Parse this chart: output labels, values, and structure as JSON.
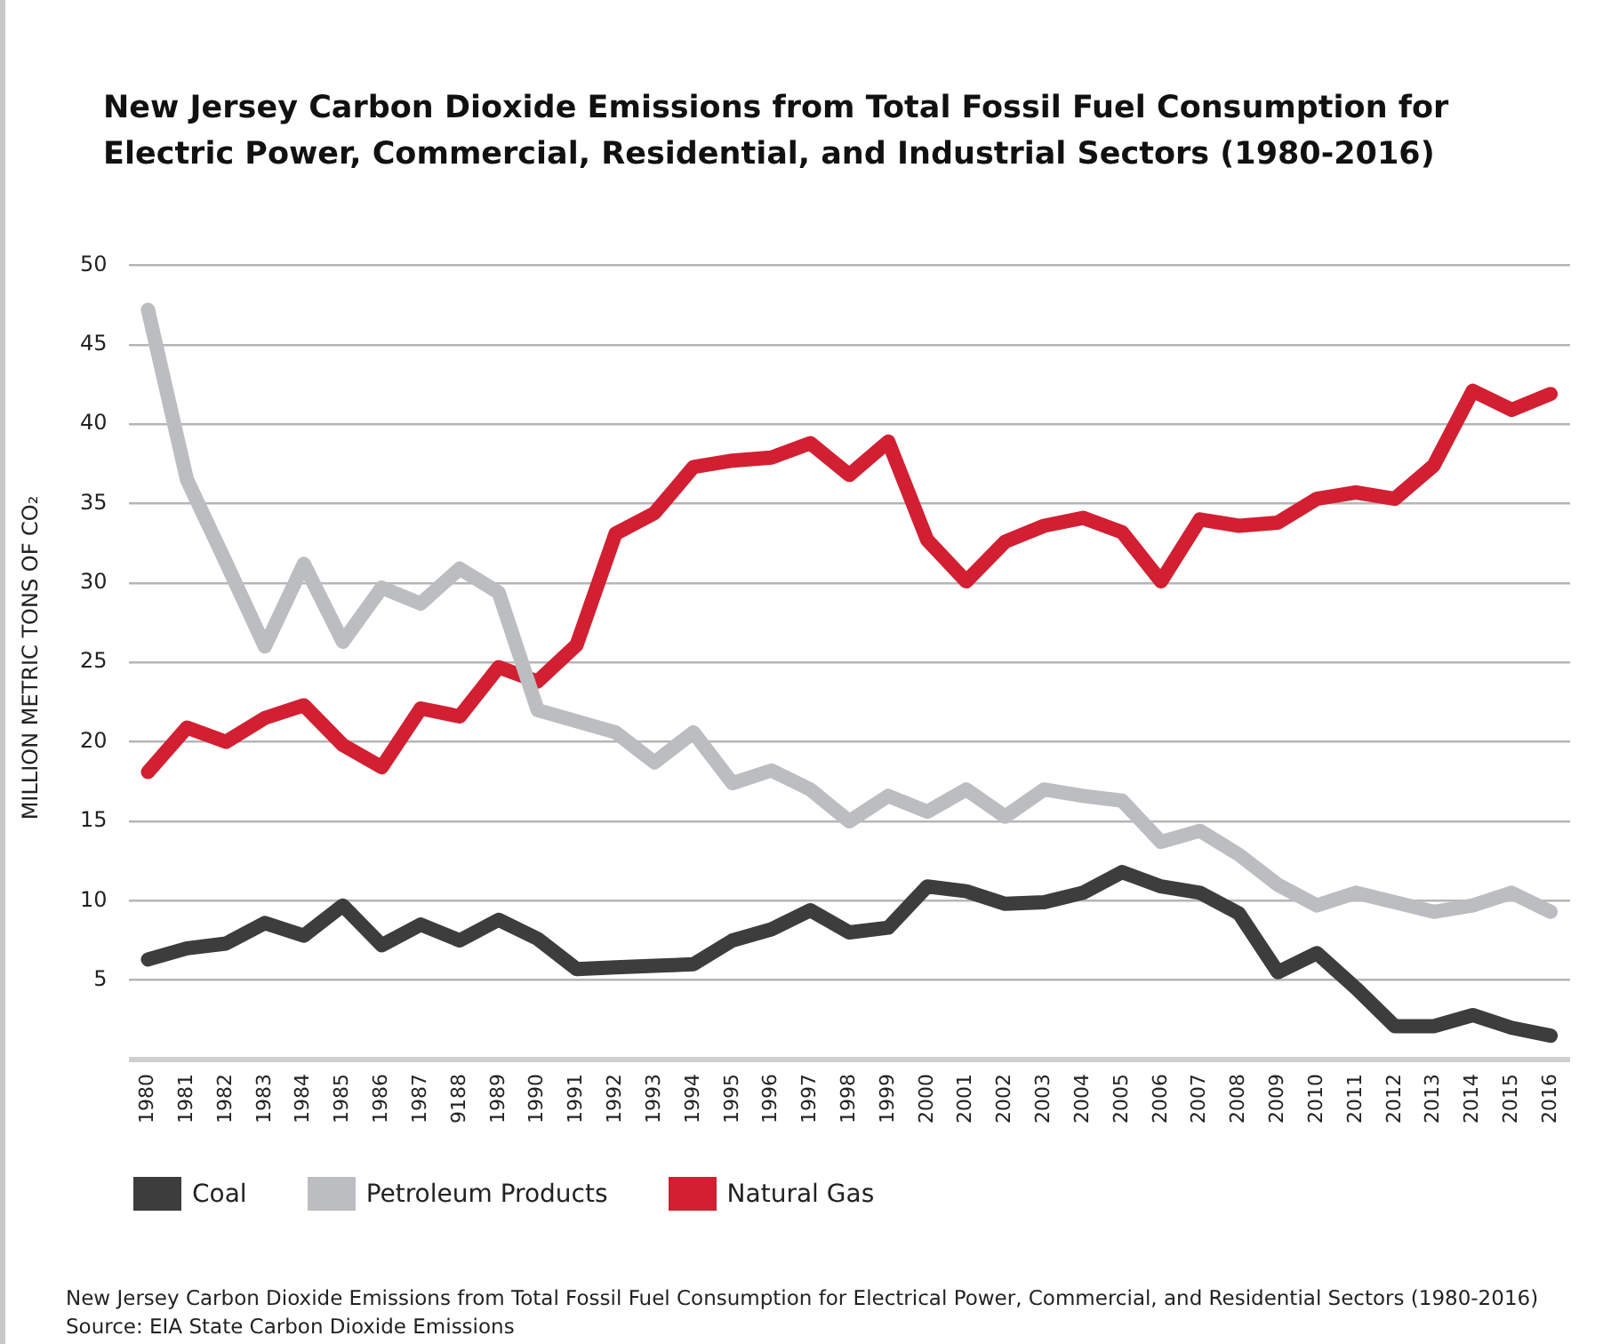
{
  "chart_data": {
    "type": "line",
    "title": "New Jersey Carbon Dioxide Emissions from Total Fossil Fuel Consumption for Electric Power, Commercial, Residential, and Industrial Sectors (1980-2016)",
    "ylabel": "MILLION METRIC TONS OF CO₂",
    "categories": [
      "1980",
      "1981",
      "1982",
      "1983",
      "1984",
      "1985",
      "1986",
      "1987",
      "9188",
      "1989",
      "1990",
      "1991",
      "1992",
      "1993",
      "1994",
      "1995",
      "1996",
      "1997",
      "1998",
      "1999",
      "2000",
      "2001",
      "2002",
      "2003",
      "2004",
      "2005",
      "2006",
      "2007",
      "2008",
      "2009",
      "2010",
      "2011",
      "2012",
      "2013",
      "2014",
      "2015",
      "2016"
    ],
    "series": [
      {
        "name": "Coal",
        "color": "#3d3d3d",
        "values": [
          6.3,
          7.0,
          7.3,
          8.6,
          7.8,
          9.7,
          7.2,
          8.5,
          7.5,
          8.8,
          7.6,
          5.7,
          5.8,
          5.9,
          6.0,
          7.5,
          8.2,
          9.4,
          8.0,
          8.3,
          10.9,
          10.6,
          9.8,
          9.9,
          10.5,
          11.8,
          10.9,
          10.5,
          9.2,
          5.5,
          6.7,
          4.5,
          2.1,
          2.1,
          2.8,
          2.0,
          1.5
        ]
      },
      {
        "name": "Petroleum Products",
        "color": "#bcbdc0",
        "values": [
          47.2,
          36.5,
          31.3,
          26.0,
          31.2,
          26.3,
          29.7,
          28.7,
          30.9,
          29.4,
          22.0,
          21.3,
          20.6,
          18.7,
          20.6,
          17.4,
          18.2,
          17.0,
          15.0,
          16.6,
          15.6,
          17.0,
          15.3,
          17.0,
          16.6,
          16.3,
          13.7,
          14.4,
          12.9,
          11.0,
          9.7,
          10.5,
          9.9,
          9.3,
          9.7,
          10.5,
          9.3
        ]
      },
      {
        "name": "Natural Gas",
        "color": "#d21f32",
        "values": [
          18.1,
          20.9,
          20.0,
          21.5,
          22.3,
          19.8,
          18.4,
          22.1,
          21.6,
          24.7,
          23.8,
          26.1,
          33.1,
          34.4,
          37.3,
          37.7,
          37.9,
          38.8,
          36.8,
          38.9,
          32.7,
          30.1,
          32.6,
          33.6,
          34.1,
          33.2,
          30.1,
          34.0,
          33.6,
          33.8,
          35.3,
          35.7,
          35.3,
          37.4,
          42.1,
          40.9,
          41.9
        ]
      }
    ],
    "ylim": [
      0,
      50
    ],
    "yticks": [
      {
        "value": 0,
        "label": null
      },
      5,
      10,
      15,
      20,
      25,
      30,
      35,
      40,
      45,
      50
    ],
    "grid": "y",
    "legend": "bottom",
    "marker": "none",
    "line_style": "solid",
    "annotations": [
      "New Jersey Carbon Dioxide Emissions from Total Fossil Fuel Consumption for Electrical Power, Commercial, and Residential Sectors (1980-2016)",
      "Source: EIA State Carbon Dioxide Emissions"
    ]
  }
}
